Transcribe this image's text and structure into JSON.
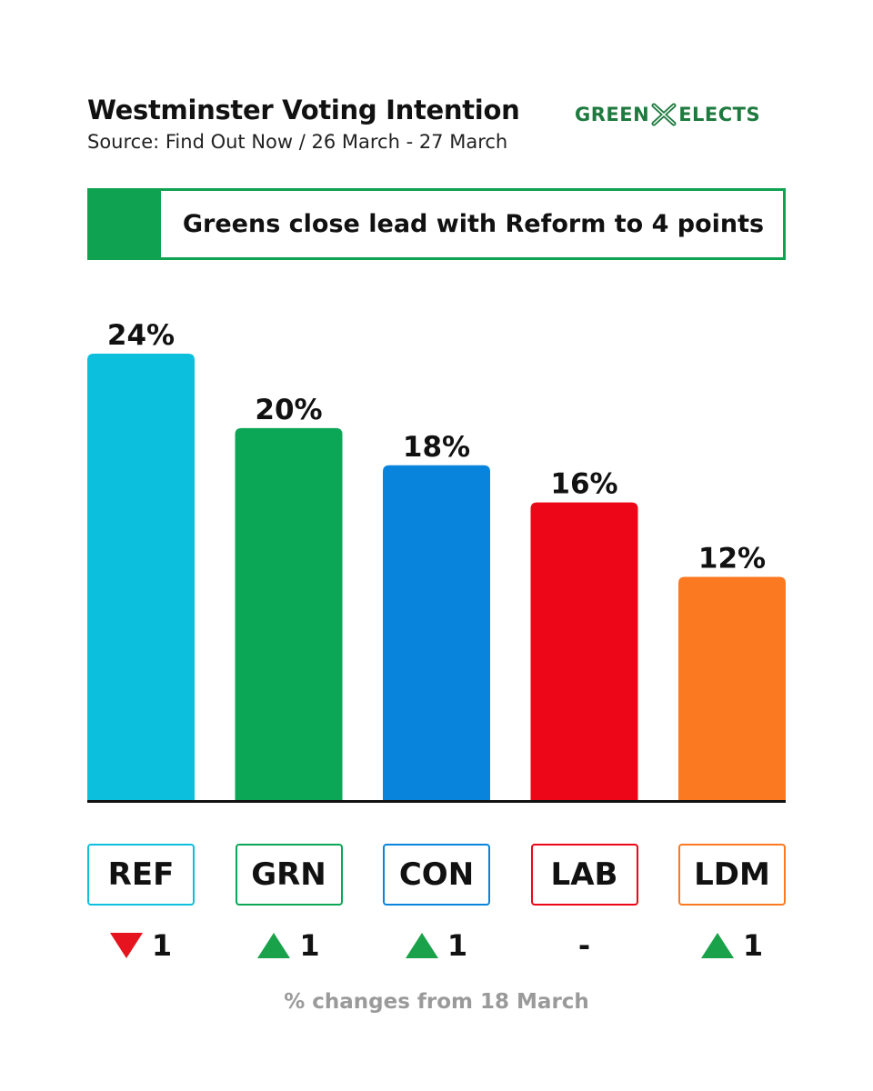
{
  "header": {
    "title": "Westminster Voting Intention",
    "subtitle": "Source: Find Out Now / 26 March - 27 March",
    "logo_left": "GREEN",
    "logo_right": "ELECTS"
  },
  "banner": {
    "text": "Greens close lead with Reform to 4 points"
  },
  "chart_data": {
    "type": "bar",
    "title": "Westminster Voting Intention",
    "xlabel": "",
    "ylabel": "",
    "ylim": [
      0,
      24
    ],
    "categories": [
      "REF",
      "GRN",
      "CON",
      "LAB",
      "LDM"
    ],
    "values": [
      24,
      20,
      18,
      16,
      12
    ],
    "labels": [
      "24%",
      "20%",
      "18%",
      "16%",
      "12%"
    ],
    "colors": [
      "#0cbfdc",
      "#0ba656",
      "#0984dc",
      "#ec0618",
      "#fb7920"
    ],
    "changes": [
      {
        "direction": "down",
        "value": "1"
      },
      {
        "direction": "up",
        "value": "1"
      },
      {
        "direction": "up",
        "value": "1"
      },
      {
        "direction": "none",
        "value": "-"
      },
      {
        "direction": "up",
        "value": "1"
      }
    ],
    "footnote": "% changes from 18 March"
  }
}
